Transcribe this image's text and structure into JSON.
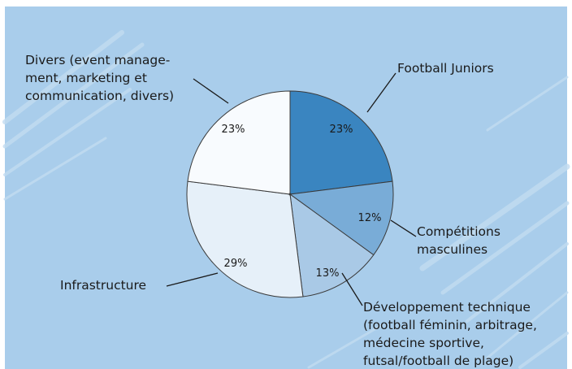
{
  "chart_data": {
    "type": "pie",
    "title": "",
    "unit": "%",
    "slices": [
      {
        "value": 23,
        "value_label": "23%",
        "label_lines": [
          "Football Juniors"
        ],
        "color": "#3a85c0"
      },
      {
        "value": 12,
        "value_label": "12%",
        "label_lines": [
          "Compétitions",
          "masculines"
        ],
        "color": "#79acd7"
      },
      {
        "value": 13,
        "value_label": "13%",
        "label_lines": [
          "Développement technique",
          "(football féminin, arbitrage,",
          "médecine sportive,",
          "futsal/football de plage)"
        ],
        "color": "#a9c9e6"
      },
      {
        "value": 29,
        "value_label": "29%",
        "label_lines": [
          "Infrastructure"
        ],
        "color": "#e6f0f9"
      },
      {
        "value": 23,
        "value_label": "23%",
        "label_lines": [
          "Divers (event manage-",
          "ment, marketing et",
          "communication, divers)"
        ],
        "color": "#f8fbfe"
      }
    ],
    "start": "12 o'clock",
    "direction": "clockwise"
  },
  "colors": {
    "background": "#a9cdeb",
    "stripes": "#c3dcf1",
    "frame": "#ffffff"
  }
}
